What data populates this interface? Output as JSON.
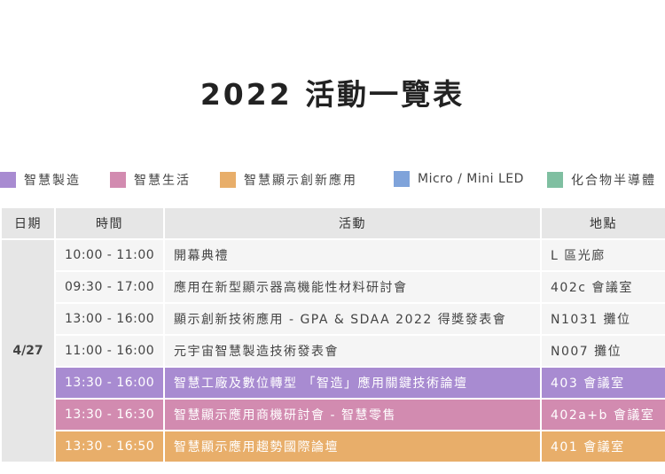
{
  "title": "2022 活動一覽表",
  "legend": [
    {
      "label": "智慧製造",
      "color": "#a88bd1"
    },
    {
      "label": "智慧生活",
      "color": "#d28bb0"
    },
    {
      "label": "智慧顯示創新應用",
      "color": "#e8ae6a"
    },
    {
      "label": "Micro / Mini LED",
      "color": "#7fa3da"
    },
    {
      "label": "化合物半導體",
      "color": "#7fbfa1"
    }
  ],
  "table": {
    "headers": [
      "日期",
      "時間",
      "活動",
      "地點"
    ],
    "date": "4/27",
    "rows": [
      {
        "time": "10:00 - 11:00",
        "activity": "開幕典禮",
        "location": "L 區光廊",
        "color": ""
      },
      {
        "time": "09:30 - 17:00",
        "activity": "應用在新型顯示器高機能性材料研討會",
        "location": "402c 會議室",
        "color": ""
      },
      {
        "time": "13:00 - 16:00",
        "activity": "顯示創新技術應用 - GPA & SDAA 2022 得獎發表會",
        "location": "N1031 攤位",
        "color": ""
      },
      {
        "time": "11:00 - 16:00",
        "activity": "元宇宙智慧製造技術發表會",
        "location": "N007 攤位",
        "color": ""
      },
      {
        "time": "13:30 - 16:00",
        "activity": "智慧工廠及數位轉型 「智造」應用關鍵技術論壇",
        "location": "403 會議室",
        "color": "#a88bd1"
      },
      {
        "time": "13:30 - 16:30",
        "activity": "智慧顯示應用商機研討會 - 智慧零售",
        "location": "402a+b 會議室",
        "color": "#d28bb0"
      },
      {
        "time": "13:30 - 16:50",
        "activity": "智慧顯示應用趨勢國際論壇",
        "location": "401 會議室",
        "color": "#e8ae6a"
      }
    ]
  }
}
